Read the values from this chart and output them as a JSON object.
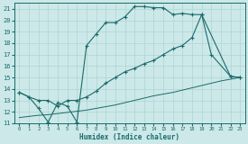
{
  "xlabel": "Humidex (Indice chaleur)",
  "bg_color": "#cce8e8",
  "grid_color": "#aed4d4",
  "line_color": "#1a6b6b",
  "xlim": [
    -0.5,
    23.5
  ],
  "ylim": [
    11,
    21.5
  ],
  "yticks": [
    11,
    12,
    13,
    14,
    15,
    16,
    17,
    18,
    19,
    20,
    21
  ],
  "xticks": [
    0,
    1,
    2,
    3,
    4,
    5,
    6,
    7,
    8,
    9,
    10,
    11,
    12,
    13,
    14,
    15,
    16,
    17,
    18,
    19,
    20,
    21,
    22,
    23
  ],
  "line1_x": [
    0,
    1,
    2,
    3,
    4,
    5,
    6,
    7,
    8,
    9,
    10,
    11,
    12,
    13,
    14,
    15,
    16,
    17,
    18,
    19,
    20,
    22,
    23
  ],
  "line1_y": [
    13.7,
    13.3,
    12.3,
    11.1,
    12.8,
    12.5,
    11.1,
    17.8,
    18.8,
    19.8,
    19.8,
    20.3,
    21.2,
    21.2,
    21.1,
    21.1,
    20.5,
    20.6,
    20.5,
    20.5,
    17.0,
    15.1,
    15.0
  ],
  "line2_x": [
    0,
    1,
    2,
    3,
    4,
    5,
    6,
    7,
    8,
    9,
    10,
    11,
    12,
    13,
    14,
    15,
    16,
    17,
    18,
    19,
    22,
    23
  ],
  "line2_y": [
    13.7,
    13.3,
    13.0,
    13.0,
    12.5,
    13.0,
    13.0,
    13.3,
    13.8,
    14.5,
    15.0,
    15.5,
    15.8,
    16.2,
    16.5,
    17.0,
    17.5,
    17.8,
    18.5,
    20.5,
    15.1,
    15.0
  ],
  "line3_x": [
    0,
    1,
    2,
    3,
    4,
    5,
    6,
    7,
    8,
    9,
    10,
    11,
    12,
    13,
    14,
    15,
    16,
    17,
    18,
    19,
    20,
    21,
    22,
    23
  ],
  "line3_y": [
    11.5,
    11.6,
    11.7,
    11.75,
    11.85,
    11.95,
    12.05,
    12.15,
    12.3,
    12.45,
    12.6,
    12.8,
    13.0,
    13.2,
    13.4,
    13.55,
    13.7,
    13.9,
    14.1,
    14.3,
    14.5,
    14.7,
    14.85,
    15.0
  ]
}
